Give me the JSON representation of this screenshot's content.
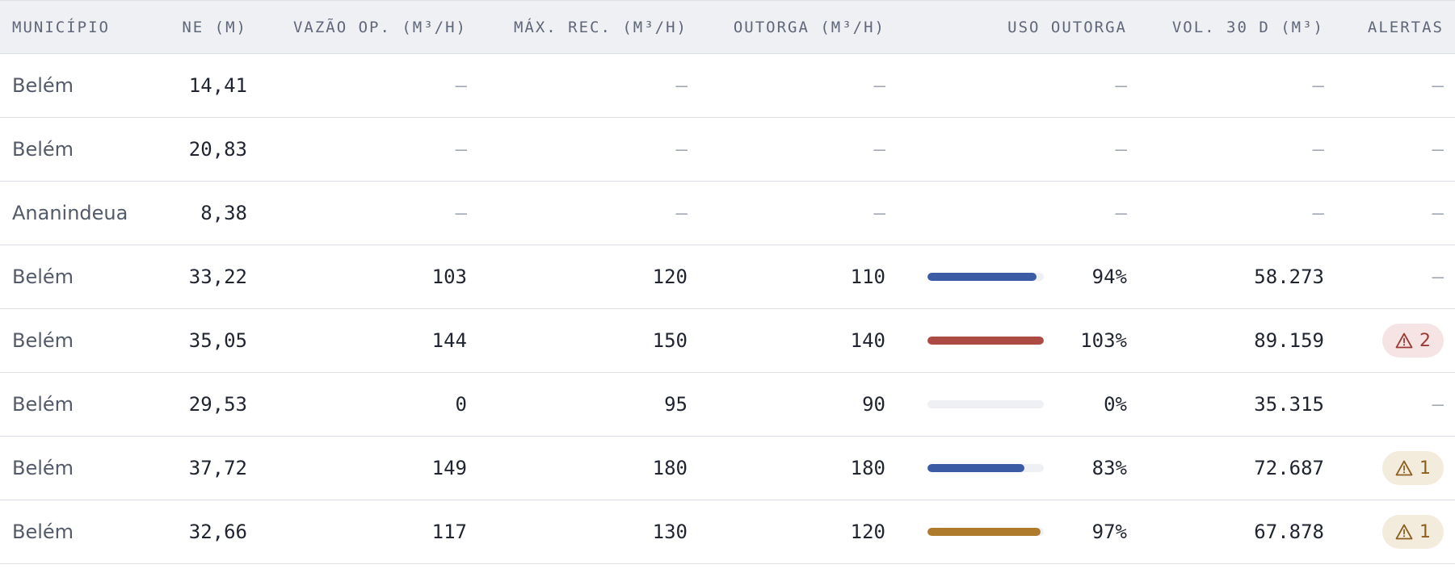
{
  "columns": {
    "municipio": "MUNICÍPIO",
    "ne": "NE (M)",
    "vazao": "VAZÃO OP. (M³/H)",
    "max_rec": "MÁX. REC. (M³/H)",
    "outorga": "OUTORGA (M³/H)",
    "uso": "USO OUTORGA",
    "vol": "VOL. 30 D (M³)",
    "alertas": "ALERTAS"
  },
  "dash": "—",
  "colors": {
    "bar_blue": "#3b5ba5",
    "bar_red": "#ad4a42",
    "bar_amber": "#ae7a2c",
    "pill_red_bg": "#f6e4e4",
    "pill_red_fg": "#9a3a34",
    "pill_amber_bg": "#f3ecdc",
    "pill_amber_fg": "#8a5f1f"
  },
  "rows": [
    {
      "municipio": "Belém",
      "ne": "14,41",
      "vazao": "—",
      "max_rec": "—",
      "outorga": "—",
      "uso_label": "—",
      "vol": "—",
      "alert_count": "—"
    },
    {
      "municipio": "Belém",
      "ne": "20,83",
      "vazao": "—",
      "max_rec": "—",
      "outorga": "—",
      "uso_label": "—",
      "vol": "—",
      "alert_count": "—"
    },
    {
      "municipio": "Ananindeua",
      "ne": "8,38",
      "vazao": "—",
      "max_rec": "—",
      "outorga": "—",
      "uso_label": "—",
      "vol": "—",
      "alert_count": "—"
    },
    {
      "municipio": "Belém",
      "ne": "33,22",
      "vazao": "103",
      "max_rec": "120",
      "outorga": "110",
      "uso_label": "94%",
      "uso_fraction": 0.94,
      "uso_color": "#3b5ba5",
      "vol": "58.273",
      "alert_count": "—"
    },
    {
      "municipio": "Belém",
      "ne": "35,05",
      "vazao": "144",
      "max_rec": "150",
      "outorga": "140",
      "uso_label": "103%",
      "uso_fraction": 1.0,
      "uso_color": "#ad4a42",
      "vol": "89.159",
      "alert_count": "2",
      "alert_level": "red",
      "alert_icon": "warning-icon"
    },
    {
      "municipio": "Belém",
      "ne": "29,53",
      "vazao": "0",
      "max_rec": "95",
      "outorga": "90",
      "uso_label": "0%",
      "uso_fraction": 0.0,
      "uso_color": "#3b5ba5",
      "vol": "35.315",
      "alert_count": "—"
    },
    {
      "municipio": "Belém",
      "ne": "37,72",
      "vazao": "149",
      "max_rec": "180",
      "outorga": "180",
      "uso_label": "83%",
      "uso_fraction": 0.83,
      "uso_color": "#3b5ba5",
      "vol": "72.687",
      "alert_count": "1",
      "alert_level": "amber",
      "alert_icon": "warning-icon"
    },
    {
      "municipio": "Belém",
      "ne": "32,66",
      "vazao": "117",
      "max_rec": "130",
      "outorga": "120",
      "uso_label": "97%",
      "uso_fraction": 0.97,
      "uso_color": "#ae7a2c",
      "vol": "67.878",
      "alert_count": "1",
      "alert_level": "amber",
      "alert_icon": "warning-icon"
    }
  ]
}
